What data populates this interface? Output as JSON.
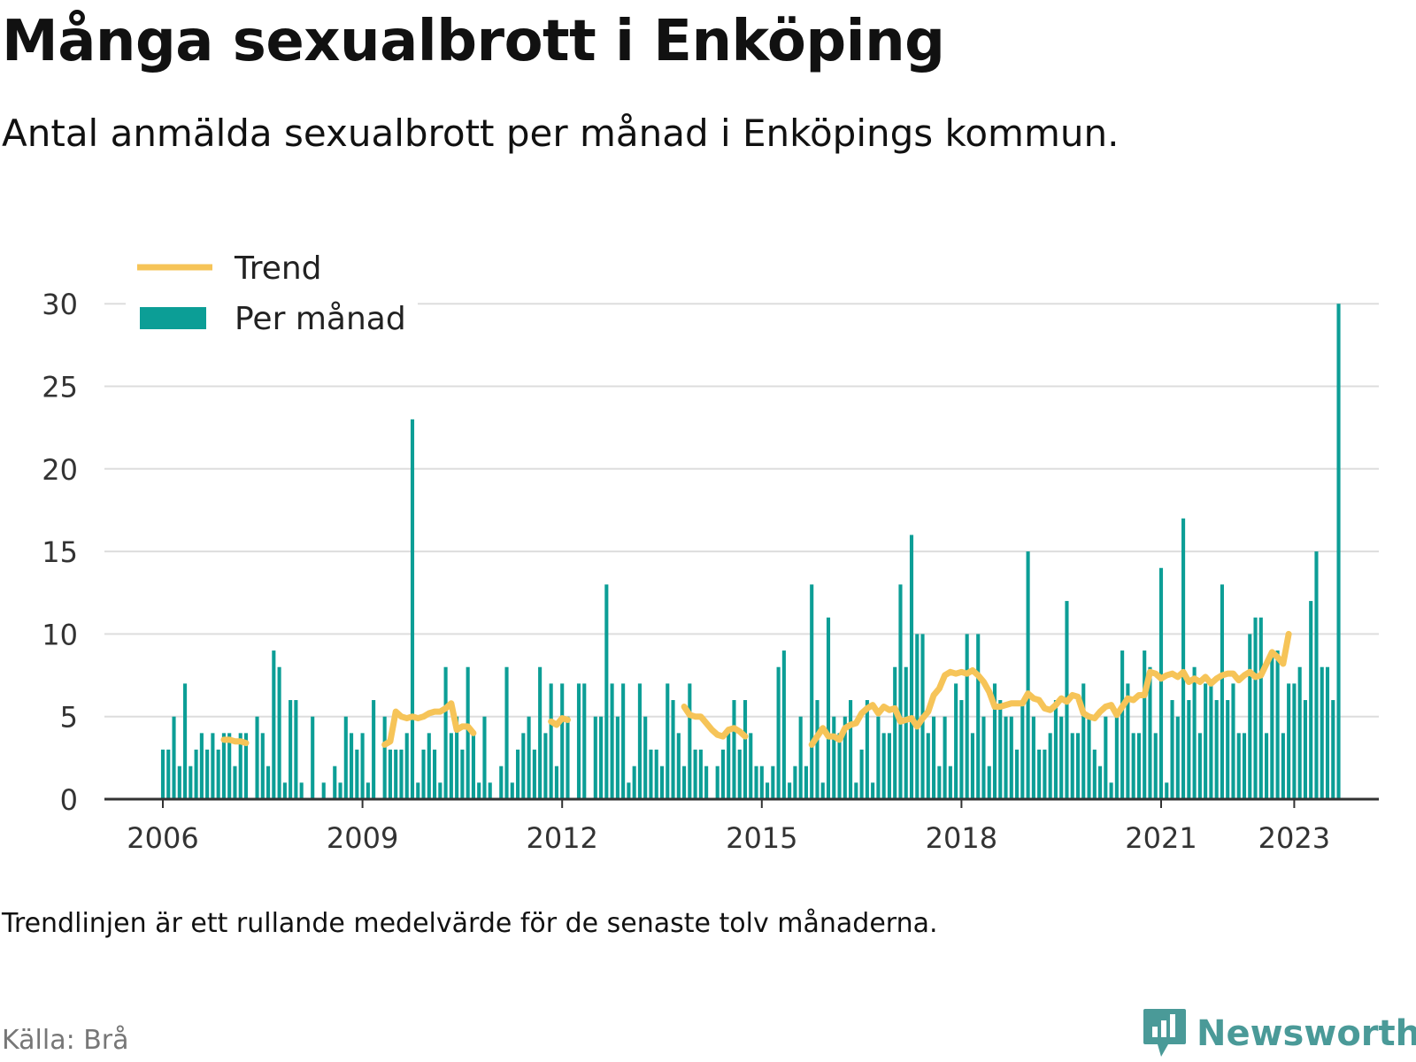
{
  "title": "Många sexualbrott i Enköping",
  "subtitle": "Antal anmälda sexualbrott per månad i Enköpings kommun.",
  "note": "Trendlinjen är ett rullande medelvärde för de senaste tolv månaderna.",
  "source": "Källa: Brå",
  "brand": {
    "name": "Newsworthy",
    "icon": "newsworthy-logo-icon"
  },
  "colors": {
    "bars": "#0c9e96",
    "trend": "#f6c458",
    "grid": "#dddddd",
    "axis": "#333333"
  },
  "chart_data": {
    "type": "bar",
    "title": "Många sexualbrott i Enköping",
    "subtitle": "Antal anmälda sexualbrott per månad i Enköpings kommun.",
    "start": "2006-01",
    "xlabel": "",
    "ylabel": "",
    "ylim": [
      0,
      30
    ],
    "yticks": [
      0,
      5,
      10,
      15,
      20,
      25,
      30
    ],
    "xticks": [
      "2006",
      "2009",
      "2012",
      "2015",
      "2018",
      "2021",
      "2023"
    ],
    "grid": true,
    "legend": {
      "position": "top-left",
      "entries": [
        {
          "name": "Trend",
          "kind": "line"
        },
        {
          "name": "Per månad",
          "kind": "bar"
        }
      ]
    },
    "series": [
      {
        "name": "Per månad",
        "type": "bar",
        "values": [
          3,
          3,
          5,
          2,
          7,
          2,
          3,
          4,
          3,
          4,
          3,
          4,
          4,
          2,
          4,
          4,
          0,
          5,
          4,
          2,
          9,
          8,
          1,
          6,
          6,
          1,
          0,
          5,
          0,
          1,
          0,
          2,
          1,
          5,
          4,
          3,
          4,
          1,
          6,
          0,
          5,
          3,
          3,
          3,
          4,
          23,
          1,
          3,
          4,
          3,
          1,
          8,
          4,
          5,
          3,
          8,
          4,
          1,
          5,
          1,
          0,
          2,
          8,
          1,
          3,
          4,
          5,
          3,
          8,
          4,
          7,
          2,
          7,
          5,
          0,
          7,
          7,
          0,
          5,
          5,
          13,
          7,
          5,
          7,
          1,
          2,
          7,
          5,
          3,
          3,
          2,
          7,
          6,
          4,
          2,
          7,
          3,
          3,
          2,
          0,
          2,
          3,
          4,
          6,
          3,
          6,
          4,
          2,
          2,
          1,
          2,
          8,
          9,
          1,
          2,
          5,
          2,
          13,
          6,
          1,
          11,
          5,
          4,
          5,
          6,
          1,
          3,
          6,
          1,
          5,
          4,
          4,
          8,
          13,
          8,
          16,
          10,
          10,
          4,
          5,
          2,
          5,
          2,
          7,
          6,
          10,
          4,
          10,
          5,
          2,
          7,
          6,
          5,
          5,
          3,
          6,
          15,
          5,
          3,
          3,
          4,
          6,
          5,
          12,
          4,
          4,
          7,
          5,
          3,
          2,
          5,
          1,
          5,
          9,
          7,
          4,
          4,
          9,
          8,
          4,
          14,
          1,
          6,
          5,
          17,
          6,
          8,
          4,
          7,
          7,
          6,
          13,
          6,
          7,
          4,
          4,
          10,
          11,
          11,
          4,
          9,
          9,
          4,
          7,
          7,
          8,
          6,
          12,
          15,
          8,
          8,
          6,
          30
        ]
      },
      {
        "name": "Trend",
        "type": "line",
        "values": [
          null,
          null,
          null,
          null,
          null,
          null,
          null,
          null,
          null,
          null,
          null,
          3.6,
          3.6,
          3.5,
          3.5,
          3.4,
          null,
          null,
          null,
          null,
          null,
          null,
          null,
          null,
          null,
          null,
          null,
          null,
          null,
          null,
          null,
          null,
          null,
          null,
          null,
          null,
          null,
          null,
          null,
          null,
          3.3,
          3.5,
          5.3,
          5.0,
          4.9,
          5.0,
          4.9,
          5.0,
          5.2,
          5.3,
          5.3,
          5.5,
          5.8,
          4.2,
          4.4,
          4.4,
          4.0,
          null,
          null,
          null,
          null,
          null,
          null,
          null,
          null,
          null,
          null,
          null,
          null,
          null,
          4.7,
          4.5,
          4.9,
          4.8,
          null,
          null,
          null,
          null,
          null,
          null,
          null,
          null,
          null,
          null,
          null,
          null,
          null,
          null,
          null,
          null,
          null,
          null,
          null,
          null,
          5.6,
          5.1,
          5.0,
          5.0,
          4.6,
          4.2,
          3.9,
          3.8,
          4.2,
          4.3,
          4.1,
          3.8,
          null,
          null,
          null,
          null,
          null,
          null,
          null,
          null,
          null,
          null,
          null,
          3.3,
          3.8,
          4.3,
          3.8,
          3.8,
          3.6,
          4.3,
          4.5,
          4.6,
          5.2,
          5.5,
          5.7,
          5.2,
          5.6,
          5.4,
          5.5,
          4.7,
          4.8,
          4.9,
          4.4,
          4.9,
          5.3,
          6.3,
          6.7,
          7.5,
          7.7,
          7.6,
          7.7,
          7.6,
          7.8,
          7.5,
          7.1,
          6.5,
          5.6,
          5.6,
          5.7,
          5.8,
          5.8,
          5.8,
          6.4,
          6.1,
          6.0,
          5.5,
          5.4,
          5.7,
          6.1,
          5.9,
          6.3,
          6.2,
          5.2,
          5.0,
          4.9,
          5.3,
          5.6,
          5.7,
          5.1,
          5.6,
          6.1,
          6.0,
          6.3,
          6.3,
          7.7,
          7.6,
          7.3,
          7.5,
          7.6,
          7.4,
          7.7,
          7.1,
          7.3,
          7.1,
          7.4,
          7.0,
          7.3,
          7.5,
          7.6,
          7.6,
          7.2,
          7.5,
          7.7,
          7.4,
          7.5,
          8.2,
          8.9,
          8.6,
          8.2,
          10.0
        ]
      }
    ]
  }
}
